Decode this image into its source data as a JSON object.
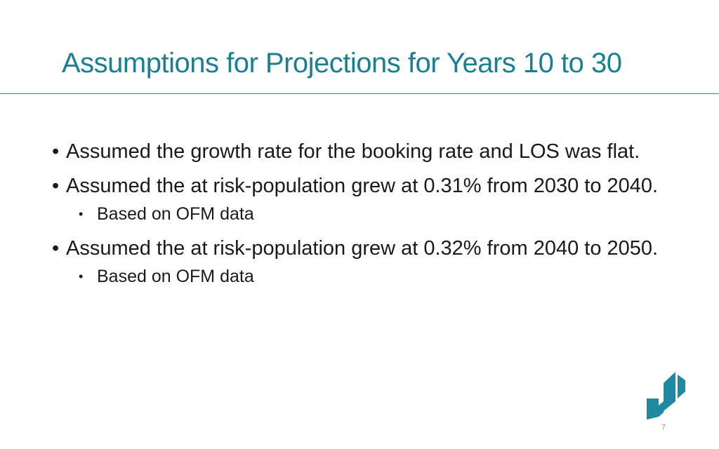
{
  "slide": {
    "title": "Assumptions for Projections for Years 10 to 30",
    "bullet_char": "•",
    "items": [
      {
        "text": "Assumed the growth rate for the booking rate and LOS was flat."
      },
      {
        "text": "Assumed the at risk-population grew at 0.31% from 2030 to 2040."
      },
      {
        "text": "Based on OFM data"
      },
      {
        "text": "Assumed the at risk-population grew at 0.32% from 2040 to 2050."
      },
      {
        "text": "Based on OFM data"
      }
    ],
    "page_number": "7",
    "logo_icon": "agency-logo-icon",
    "colors": {
      "title": "#1b7f93",
      "logo": "#1c8aa0",
      "rule": "#2a8a9e"
    }
  }
}
